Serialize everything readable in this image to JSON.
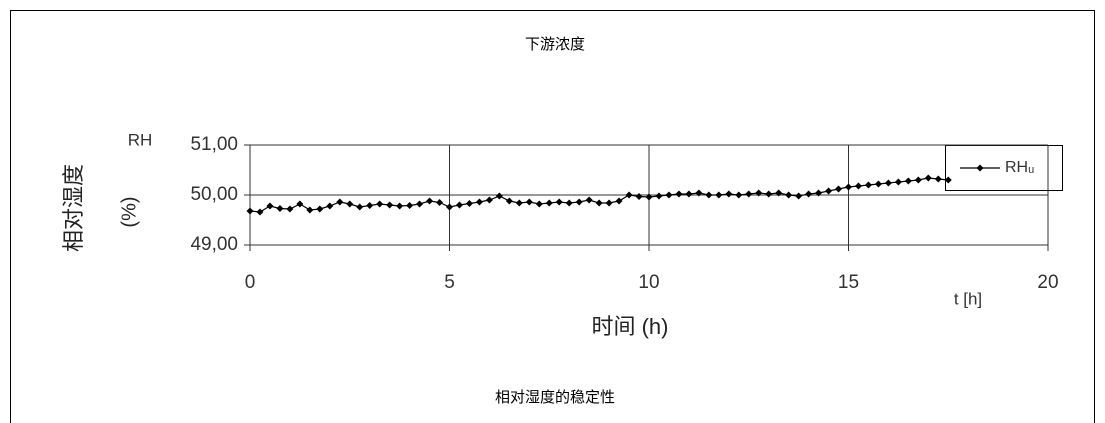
{
  "title": "下游浓度",
  "caption": "相对湿度的稳定性",
  "chart_data": {
    "type": "line",
    "y_unit_label": "RH",
    "ylabel": [
      "相对湿度",
      "(%)"
    ],
    "xlabel": "时间 (h)",
    "x_unit_label": "t [h]",
    "xlim": [
      0,
      20
    ],
    "xticks": [
      0,
      5,
      10,
      15,
      20
    ],
    "ylim": [
      49,
      51
    ],
    "yticks": [
      {
        "value": 49,
        "label": "49,00"
      },
      {
        "value": 50,
        "label": "50,00"
      },
      {
        "value": 51,
        "label": "51,00"
      }
    ],
    "grid": true,
    "legend": "top-right",
    "x": [
      0,
      0.25,
      0.5,
      0.75,
      1,
      1.25,
      1.5,
      1.75,
      2,
      2.25,
      2.5,
      2.75,
      3,
      3.25,
      3.5,
      3.75,
      4,
      4.25,
      4.5,
      4.75,
      5,
      5.25,
      5.5,
      5.75,
      6,
      6.25,
      6.5,
      6.75,
      7,
      7.25,
      7.5,
      7.75,
      8,
      8.25,
      8.5,
      8.75,
      9,
      9.25,
      9.5,
      9.75,
      10,
      10.25,
      10.5,
      10.75,
      11,
      11.25,
      11.5,
      11.75,
      12,
      12.25,
      12.5,
      12.75,
      13,
      13.25,
      13.5,
      13.75,
      14,
      14.25,
      14.5,
      14.75,
      15,
      15.25,
      15.5,
      15.75,
      16,
      16.25,
      16.5,
      16.75,
      17,
      17.25,
      17.5
    ],
    "series": [
      {
        "name": "RHᵤ",
        "color": "#000000",
        "values": [
          49.68,
          49.66,
          49.78,
          49.73,
          49.72,
          49.82,
          49.7,
          49.72,
          49.78,
          49.86,
          49.82,
          49.76,
          49.79,
          49.82,
          49.8,
          49.78,
          49.79,
          49.82,
          49.88,
          49.85,
          49.76,
          49.8,
          49.83,
          49.86,
          49.9,
          49.98,
          49.88,
          49.84,
          49.86,
          49.82,
          49.84,
          49.86,
          49.84,
          49.86,
          49.9,
          49.84,
          49.84,
          49.88,
          50.0,
          49.97,
          49.96,
          49.98,
          50.0,
          50.02,
          50.02,
          50.04,
          50.0,
          50.0,
          50.02,
          50.0,
          50.02,
          50.04,
          50.02,
          50.04,
          50.0,
          49.98,
          50.02,
          50.04,
          50.08,
          50.12,
          50.16,
          50.18,
          50.2,
          50.22,
          50.24,
          50.26,
          50.28,
          50.3,
          50.34,
          50.32,
          50.3
        ]
      }
    ]
  }
}
